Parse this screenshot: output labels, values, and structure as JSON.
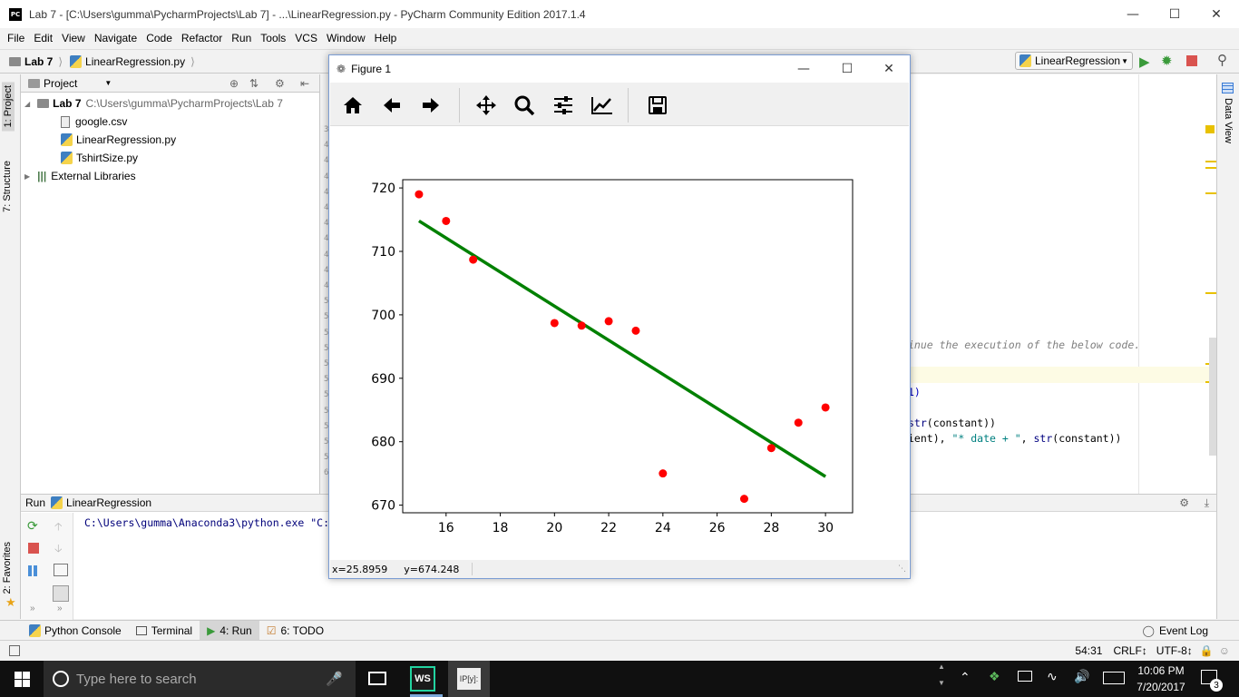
{
  "window": {
    "title": "Lab 7 - [C:\\Users\\gumma\\PycharmProjects\\Lab 7] - ...\\LinearRegression.py - PyCharm Community Edition 2017.1.4",
    "logo": "PC"
  },
  "menu": [
    "File",
    "Edit",
    "View",
    "Navigate",
    "Code",
    "Refactor",
    "Run",
    "Tools",
    "VCS",
    "Window",
    "Help"
  ],
  "breadcrumb": {
    "project": "Lab 7",
    "file": "LinearRegression.py"
  },
  "run_config": {
    "label": "LinearRegression"
  },
  "left_tabs": {
    "project": "1: Project",
    "structure": "7: Structure",
    "favorites": "2: Favorites"
  },
  "right_tabs": {
    "data_view": "Data View"
  },
  "project_panel": {
    "header": "Project",
    "root_name": "Lab 7",
    "root_path": "C:\\Users\\gumma\\PycharmProjects\\Lab 7",
    "files": [
      "google.csv",
      "LinearRegression.py",
      "TshirtSize.py"
    ],
    "external": "External Libraries"
  },
  "editor": {
    "line_comment": "inue the execution of the below code.",
    "line_a": "1)",
    "line_b_pre": "str",
    "line_b_post": "(constant))",
    "line_c_pre": "ient), ",
    "line_c_str": "\"* date + \"",
    "line_c_mid": ", ",
    "line_c_fn": "str",
    "line_c_post": "(constant))"
  },
  "gutter_numbers": [
    "3",
    "4",
    "4",
    "4",
    "4",
    "4",
    "4",
    "4",
    "4",
    "4",
    "4",
    "5",
    "5",
    "5",
    "5",
    "5",
    "5",
    "5",
    "5",
    "5",
    "5",
    "5",
    "6"
  ],
  "run_panel": {
    "label": "Run",
    "config": "LinearRegression",
    "output": "C:\\Users\\gumma\\Anaconda3\\python.exe \"C:"
  },
  "tool_windows": [
    {
      "label": "Python Console",
      "icon": "python-console-icon"
    },
    {
      "label": "Terminal",
      "icon": "terminal-icon"
    },
    {
      "label": "4: Run",
      "icon": "run-icon"
    },
    {
      "label": "6: TODO",
      "icon": "todo-icon"
    }
  ],
  "event_log": "Event Log",
  "status": {
    "position": "54:31",
    "line_sep": "CRLF↕",
    "encoding": "UTF-8↕"
  },
  "figure": {
    "title": "Figure 1",
    "status_x": "x=25.8959",
    "status_y": "y=674.248"
  },
  "chart_data": {
    "type": "scatter",
    "title": "",
    "xlabel": "",
    "ylabel": "",
    "xlim": [
      14.4,
      31.0
    ],
    "ylim": [
      668.8,
      721.3
    ],
    "xticks": [
      16,
      18,
      20,
      22,
      24,
      26,
      28,
      30
    ],
    "yticks": [
      670,
      680,
      690,
      700,
      710,
      720
    ],
    "grid": false,
    "points": {
      "color": "#ff0000",
      "x": [
        15,
        16,
        17,
        20,
        21,
        22,
        23,
        24,
        27,
        28,
        29,
        30
      ],
      "y": [
        719,
        714.8,
        708.7,
        698.7,
        698.3,
        699,
        697.5,
        675,
        671,
        679,
        683,
        685.4
      ]
    },
    "fit_line": {
      "color": "#008000",
      "x": [
        15,
        30
      ],
      "y": [
        714.8,
        674.5
      ]
    }
  },
  "taskbar": {
    "search_placeholder": "Type here to search",
    "time": "10:06 PM",
    "date": "7/20/2017",
    "notifications": "3",
    "ws_label": "WS",
    "ipy_label": "IP[y]:"
  }
}
